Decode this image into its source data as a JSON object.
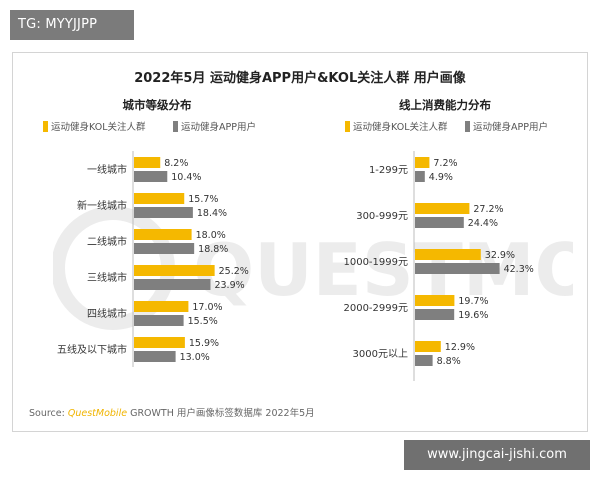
{
  "tag": "TG: MYYJJPP",
  "url": "www.jingcai-jishi.com",
  "card": {
    "title": "2022年5月 运动健身APP用户&KOL关注人群 用户画像",
    "watermark": "QUESTMOBILE",
    "source_prefix": "Source:",
    "source_brand": "QuestMobile",
    "source_rest": "GROWTH 用户画像标签数据库 2022年5月"
  },
  "colors": {
    "series1": "#f5b800",
    "series2": "#7f7f7f"
  },
  "chart_data": [
    {
      "type": "bar",
      "orientation": "horizontal",
      "title": "城市等级分布",
      "categories": [
        "一线城市",
        "新一线城市",
        "二线城市",
        "三线城市",
        "四线城市",
        "五线及以下城市"
      ],
      "series": [
        {
          "name": "运动健身KOL关注人群",
          "values": [
            8.2,
            15.7,
            18.0,
            25.2,
            17.0,
            15.9
          ],
          "labels": [
            "8.2%",
            "15.7%",
            "18.0%",
            "25.2%",
            "17.0%",
            "15.9%"
          ]
        },
        {
          "name": "运动健身APP用户",
          "values": [
            10.4,
            18.4,
            18.8,
            23.9,
            15.5,
            13.0
          ],
          "labels": [
            "10.4%",
            "18.4%",
            "18.8%",
            "23.9%",
            "15.5%",
            "13.0%"
          ]
        }
      ],
      "xlim": [
        0,
        45
      ],
      "legend": "top",
      "grid": false
    },
    {
      "type": "bar",
      "orientation": "horizontal",
      "title": "线上消费能力分布",
      "categories": [
        "1-299元",
        "300-999元",
        "1000-1999元",
        "2000-2999元",
        "3000元以上"
      ],
      "series": [
        {
          "name": "运动健身KOL关注人群",
          "values": [
            7.2,
            27.2,
            32.9,
            19.7,
            12.9
          ],
          "labels": [
            "7.2%",
            "27.2%",
            "32.9%",
            "19.7%",
            "12.9%"
          ]
        },
        {
          "name": "运动健身APP用户",
          "values": [
            4.9,
            24.4,
            42.3,
            19.6,
            8.8
          ],
          "labels": [
            "4.9%",
            "24.4%",
            "42.3%",
            "19.6%",
            "8.8%"
          ]
        }
      ],
      "xlim": [
        0,
        45
      ],
      "legend": "top",
      "grid": false
    }
  ]
}
